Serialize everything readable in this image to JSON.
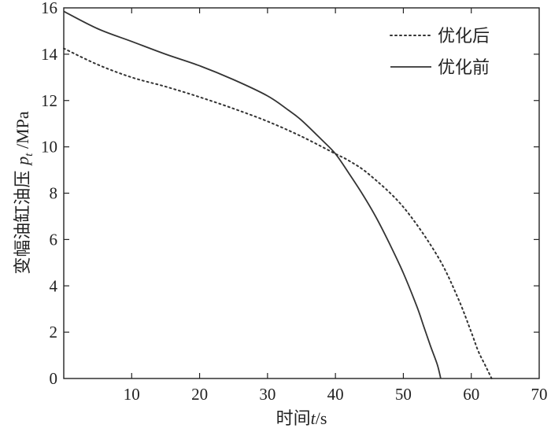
{
  "chart_data": {
    "type": "line",
    "title": "",
    "xlabel": "时间t/s",
    "xlabel_parts": {
      "text": "时间",
      "var": "t",
      "unit": "/s"
    },
    "ylabel": "变幅油缸油压 p_t /MPa",
    "ylabel_parts": {
      "text": "变幅油缸油压 ",
      "var": "p",
      "sub": "t",
      "unit": " /MPa"
    },
    "xlim": [
      0,
      70
    ],
    "ylim": [
      0,
      16
    ],
    "xticks": [
      10,
      20,
      30,
      40,
      50,
      60,
      70
    ],
    "xtick_labels": [
      "10",
      "20",
      "30",
      "40",
      "50",
      "60",
      "70"
    ],
    "yticks": [
      0,
      2,
      4,
      6,
      8,
      10,
      12,
      14,
      16
    ],
    "ytick_labels": [
      "0",
      "2",
      "4",
      "6",
      "8",
      "10",
      "12",
      "14",
      "16"
    ],
    "grid": false,
    "legend_position": "top-right",
    "series": [
      {
        "name": "优化后",
        "style": "dotted",
        "color": "#333333",
        "x": [
          0,
          5,
          10,
          15,
          20,
          25,
          30,
          35,
          40,
          42,
          45,
          50,
          55,
          58,
          60,
          61,
          62,
          62.5,
          63
        ],
        "y": [
          14.25,
          13.55,
          13.0,
          12.6,
          12.15,
          11.65,
          11.1,
          10.45,
          9.7,
          9.4,
          8.8,
          7.4,
          5.3,
          3.5,
          2.0,
          1.2,
          0.6,
          0.3,
          0.0
        ]
      },
      {
        "name": "优化前",
        "style": "solid",
        "color": "#333333",
        "x": [
          0,
          5,
          10,
          15,
          20,
          25,
          30,
          33,
          35,
          38,
          40,
          42,
          44,
          46,
          48,
          50,
          52,
          53,
          54,
          55,
          55.5
        ],
        "y": [
          15.85,
          15.1,
          14.55,
          14.0,
          13.5,
          12.9,
          12.2,
          11.6,
          11.15,
          10.3,
          9.7,
          8.85,
          7.95,
          6.95,
          5.8,
          4.55,
          3.1,
          2.25,
          1.4,
          0.6,
          0.0
        ]
      }
    ]
  }
}
